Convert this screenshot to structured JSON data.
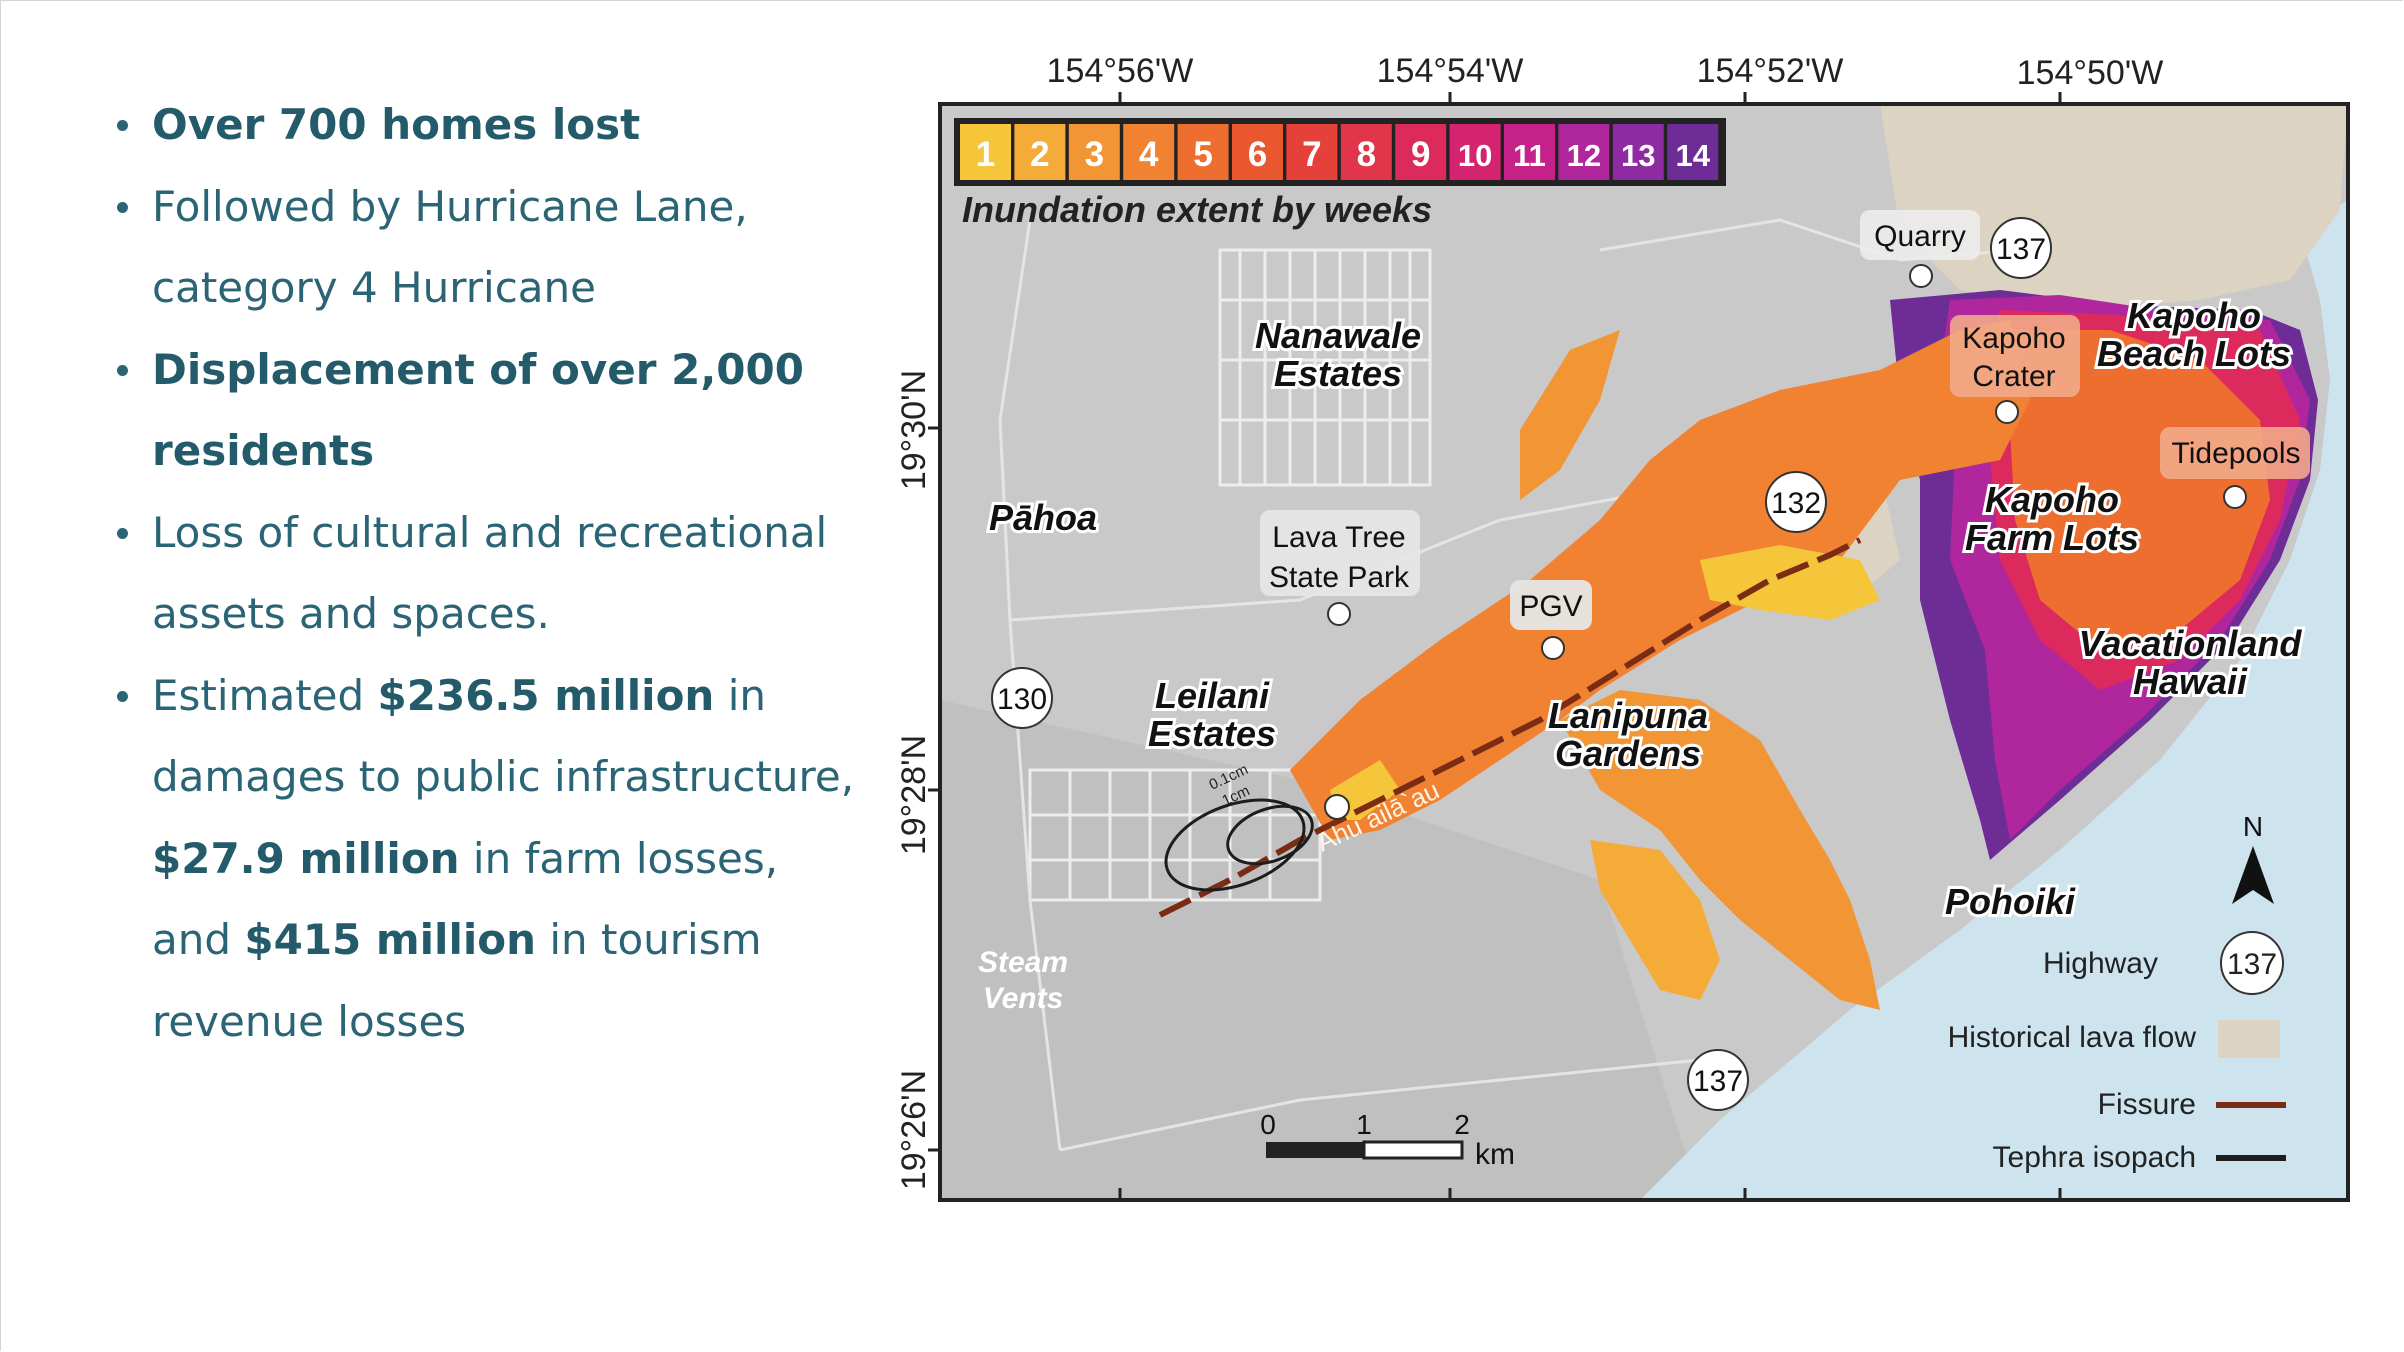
{
  "bullets": [
    {
      "parts": [
        {
          "t": "Over 700 homes lost",
          "b": true
        }
      ]
    },
    {
      "parts": [
        {
          "t": "Followed by Hurricane Lane, category 4 Hurricane",
          "b": false
        }
      ]
    },
    {
      "parts": [
        {
          "t": "Displacement of over 2,000 residents",
          "b": true
        }
      ]
    },
    {
      "parts": [
        {
          "t": "Loss of cultural and recreational assets and spaces.",
          "b": false
        }
      ]
    },
    {
      "parts": [
        {
          "t": "Estimated ",
          "b": false
        },
        {
          "t": "$236.5 million",
          "b": true
        },
        {
          "t": " in damages to public infrastructure, ",
          "b": false
        },
        {
          "t": "$27.9 million",
          "b": true
        },
        {
          "t": " in farm losses, and ",
          "b": false
        },
        {
          "t": "$415 million",
          "b": true
        },
        {
          "t": " in tourism revenue losses",
          "b": false
        }
      ]
    }
  ],
  "map": {
    "longitude_labels": [
      "154°56'W",
      "154°54'W",
      "154°52'W",
      "154°50'W"
    ],
    "latitude_labels": [
      "19°30'N",
      "19°28'N",
      "19°26'N"
    ],
    "inundation_legend": {
      "title": "Inundation extent by weeks",
      "weeks": [
        "1",
        "2",
        "3",
        "4",
        "5",
        "6",
        "7",
        "8",
        "9",
        "10",
        "11",
        "12",
        "13",
        "14"
      ],
      "colors": [
        "#f5c53a",
        "#f4ab38",
        "#f29535",
        "#f08232",
        "#ee6e2f",
        "#e9572f",
        "#e5413a",
        "#e0354a",
        "#dc2a5c",
        "#d42470",
        "#c52289",
        "#b0269c",
        "#8e2ba2",
        "#6e2c97"
      ]
    },
    "places": {
      "nanawale": [
        "Nanawale",
        "Estates"
      ],
      "pahoa": "Pāhoa",
      "leilani": [
        "Leilani",
        "Estates"
      ],
      "lanipuna": [
        "Lanipuna",
        "Gardens"
      ],
      "kapoho_beach": [
        "Kapoho",
        "Beach Lots"
      ],
      "kapoho_farm": [
        "Kapoho",
        "Farm Lots"
      ],
      "vacationland": [
        "Vacationland",
        "Hawaii"
      ],
      "pohoiki": "Pohoiki",
      "steam_vents": [
        "Steam",
        "Vents"
      ]
    },
    "poi": {
      "quarry": "Quarry",
      "kapoho_crater": [
        "Kapoho",
        "Crater"
      ],
      "tidepools": "Tidepools",
      "lava_tree": [
        "Lava Tree",
        "State Park"
      ],
      "pgv": "PGV"
    },
    "highways": [
      "137",
      "132",
      "130",
      "137"
    ],
    "fissure_label": "Ahu ailā`au",
    "isopach_labels": [
      "0.1cm",
      "1cm"
    ],
    "scale_bar": {
      "ticks": [
        "0",
        "1",
        "2"
      ],
      "unit": "km"
    },
    "north_label": "N",
    "key": {
      "highway": "Highway",
      "highway_number": "137",
      "historical": "Historical lava flow",
      "fissure": "Fissure",
      "tephra": "Tephra isopach"
    },
    "colors": {
      "ocean": "#cde4ef",
      "terrain": "#c9c9c9",
      "historical_lava": "#dcd3c2",
      "fissure": "#7a2c14",
      "isopach": "#1d1d1d"
    }
  }
}
